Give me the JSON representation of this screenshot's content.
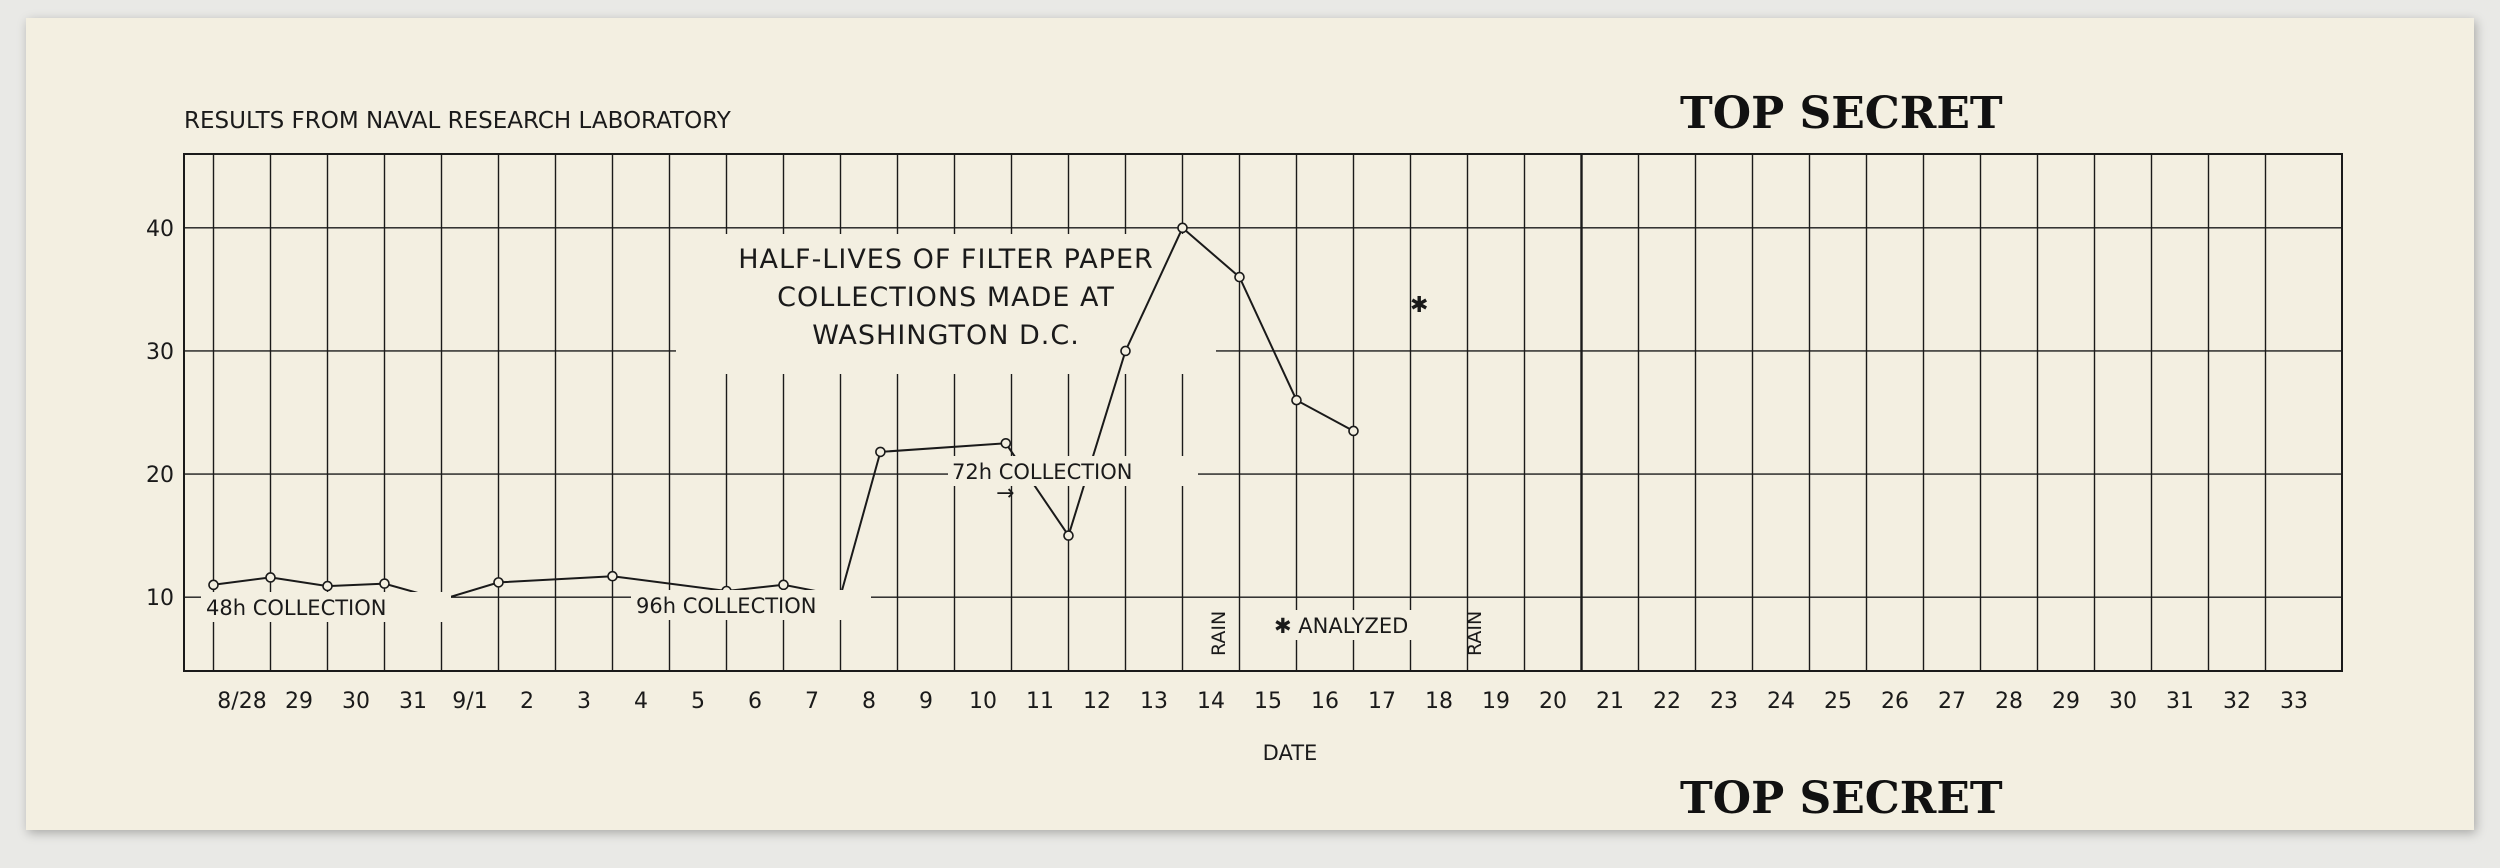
{
  "header": {
    "source": "RESULTS FROM NAVAL RESEARCH LABORATORY",
    "classification_top": "TOP SECRET",
    "classification_bottom": "TOP SECRET"
  },
  "chart_data": {
    "type": "line",
    "title": "HALF-LIVES OF FILTER PAPER COLLECTIONS MADE AT WASHINGTON D.C.",
    "title_lines": [
      "HALF-LIVES OF FILTER PAPER",
      "COLLECTIONS MADE AT",
      "WASHINGTON D.C."
    ],
    "xlabel": "DATE",
    "ylabel": "",
    "ylim": [
      4,
      46
    ],
    "yticks": [
      10,
      20,
      30,
      40
    ],
    "categories": [
      "8/28",
      "29",
      "30",
      "31",
      "9/1",
      "2",
      "3",
      "4",
      "5",
      "6",
      "7",
      "8",
      "9",
      "10",
      "11",
      "12",
      "13",
      "14",
      "15",
      "16",
      "17",
      "18",
      "19",
      "20",
      "21",
      "22",
      "23",
      "24",
      "25",
      "26",
      "27",
      "28",
      "29",
      "30",
      "31",
      "32",
      "33"
    ],
    "grid": true,
    "series": [
      {
        "x": [
          -0.5,
          0.5,
          1.5,
          2.5,
          3.5,
          4.5,
          6.5,
          8.5,
          9.5,
          10.5,
          11.2,
          13.4,
          14.5,
          15.5,
          16.5,
          17.5,
          18.5,
          19.5
        ],
        "values": [
          11.0,
          11.6,
          10.9,
          11.1,
          9.8,
          11.2,
          11.7,
          10.5,
          11.0,
          10.1,
          21.8,
          22.5,
          15.0,
          30.0,
          40.0,
          36.0,
          26.0,
          23.5
        ]
      }
    ],
    "annotations": {
      "c48": "48h  COLLECTION",
      "c96": "96h COLLECTION",
      "c72": "72h  COLLECTION",
      "arrow": "→",
      "rain1": "RAIN",
      "rain2": "RAIN",
      "analyzed": "✱ ANALYZED",
      "star": "✱"
    }
  }
}
